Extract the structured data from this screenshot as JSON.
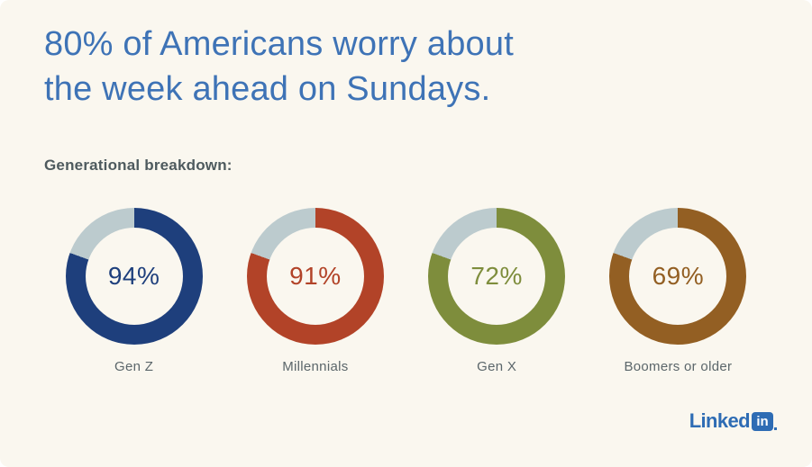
{
  "card": {
    "background": "#faf7ef"
  },
  "header": {
    "title_line1": "80% of Americans worry about",
    "title_line2": "the week ahead on Sundays.",
    "title_color": "#3e73b6",
    "subtitle": "Generational breakdown:"
  },
  "chart_data": {
    "type": "pie",
    "variant": "donut-multiples",
    "title": "80% of Americans worry about the week ahead on Sundays.",
    "subtitle": "Generational breakdown:",
    "categories": [
      "Gen Z",
      "Millennials",
      "Gen X",
      "Boomers or older"
    ],
    "values": [
      94,
      91,
      72,
      69
    ],
    "unit": "%",
    "colors": [
      "#1e3f7c",
      "#b24328",
      "#7e8d3c",
      "#935f23"
    ],
    "track_color": "#bccbce",
    "ring_fill_degrees": 290
  },
  "donuts": [
    {
      "label": "Gen Z",
      "value_text": "94%",
      "color": "#1e3f7c"
    },
    {
      "label": "Millennials",
      "value_text": "91%",
      "color": "#b24328"
    },
    {
      "label": "Gen X",
      "value_text": "72%",
      "color": "#7e8d3c"
    },
    {
      "label": "Boomers or older",
      "value_text": "69%",
      "color": "#935f23"
    }
  ],
  "footer": {
    "logo_wordmark": "Linked",
    "logo_badge": "in",
    "logo_color": "#2e6cb4"
  }
}
